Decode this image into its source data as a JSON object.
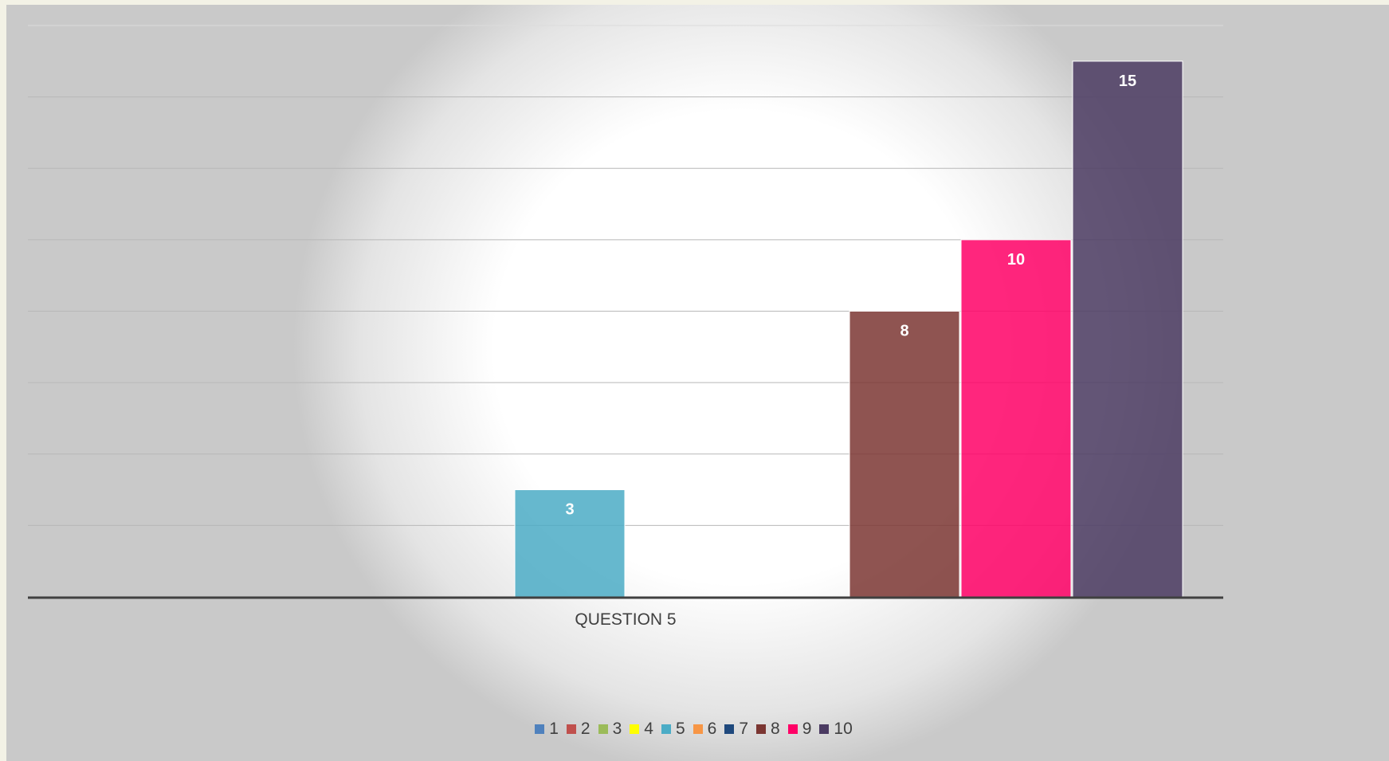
{
  "chart_data": {
    "type": "bar",
    "categories": [
      "QUESTION 5"
    ],
    "series": [
      {
        "name": "1",
        "values": [
          0
        ],
        "color": "#4f81bd"
      },
      {
        "name": "2",
        "values": [
          0
        ],
        "color": "#c0504d"
      },
      {
        "name": "3",
        "values": [
          0
        ],
        "color": "#9bbb59"
      },
      {
        "name": "4",
        "values": [
          0
        ],
        "color": "#ffff00"
      },
      {
        "name": "5",
        "values": [
          3
        ],
        "color": "#4bacc6"
      },
      {
        "name": "6",
        "values": [
          0
        ],
        "color": "#f79646"
      },
      {
        "name": "7",
        "values": [
          0
        ],
        "color": "#1f497d"
      },
      {
        "name": "8",
        "values": [
          8
        ],
        "color": "#7b3632"
      },
      {
        "name": "9",
        "values": [
          10
        ],
        "color": "#ff0066"
      },
      {
        "name": "10",
        "values": [
          15
        ],
        "color": "#4b3b62"
      }
    ],
    "data_labels": [
      "",
      "",
      "",
      "",
      "3",
      "",
      "",
      "8",
      "10",
      "15"
    ],
    "ylim": [
      0,
      16
    ],
    "grid": true,
    "legend": "bottom",
    "title": "",
    "xlabel": "",
    "ylabel": ""
  }
}
